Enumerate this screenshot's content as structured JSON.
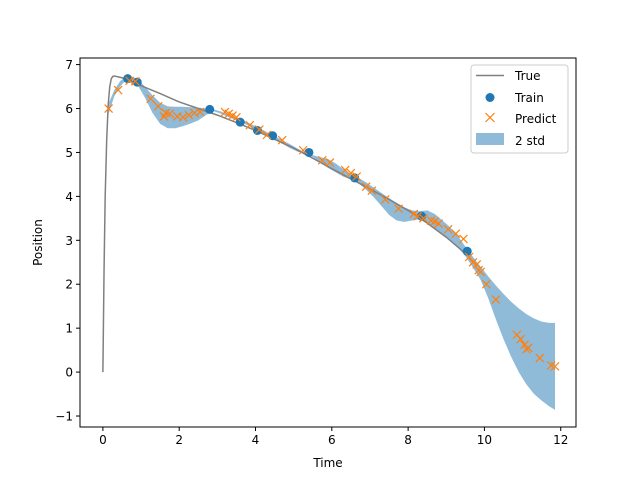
{
  "chart_data": {
    "type": "line",
    "xlabel": "Time",
    "ylabel": "Position",
    "xlim": [
      -0.6,
      12.4
    ],
    "ylim": [
      -1.25,
      7.15
    ],
    "xticks": [
      0,
      2,
      4,
      6,
      8,
      10,
      12
    ],
    "yticks": [
      -1,
      0,
      1,
      2,
      3,
      4,
      5,
      6,
      7
    ],
    "grid": false,
    "legend_position": "top-right",
    "colors": {
      "true": "#808080",
      "train": "#1f77b4",
      "predict": "#ff7f0e",
      "band": "#1f77b4"
    },
    "series": [
      {
        "name": "True",
        "kind": "line",
        "x": [
          0.0,
          0.03,
          0.06,
          0.1,
          0.14,
          0.18,
          0.22,
          0.26,
          0.3,
          0.35,
          0.4,
          0.5,
          0.6,
          0.8,
          1.0,
          1.5,
          2.0,
          2.5,
          3.0,
          3.5,
          4.0,
          4.5,
          5.0,
          5.5,
          6.0,
          6.5,
          7.0,
          7.5,
          8.0,
          8.5,
          9.0,
          9.5
        ],
        "y": [
          0.0,
          2.3,
          4.0,
          5.3,
          6.1,
          6.5,
          6.68,
          6.73,
          6.74,
          6.73,
          6.72,
          6.7,
          6.67,
          6.6,
          6.52,
          6.34,
          6.15,
          6.0,
          5.85,
          5.68,
          5.5,
          5.3,
          5.1,
          4.87,
          4.63,
          4.4,
          4.17,
          3.93,
          3.68,
          3.39,
          3.07,
          2.7
        ]
      },
      {
        "name": "Train",
        "kind": "scatter",
        "x": [
          0.65,
          0.9,
          2.8,
          3.6,
          4.05,
          4.45,
          5.4,
          6.6,
          8.35,
          9.55
        ],
        "y": [
          6.68,
          6.6,
          5.98,
          5.69,
          5.5,
          5.38,
          5.0,
          4.42,
          3.55,
          2.75
        ]
      },
      {
        "name": "Predict",
        "kind": "scatter",
        "x": [
          0.15,
          0.4,
          0.7,
          0.85,
          1.25,
          1.45,
          1.6,
          1.65,
          1.75,
          1.95,
          2.1,
          2.25,
          2.4,
          2.55,
          3.2,
          3.3,
          3.4,
          3.5,
          3.85,
          4.1,
          4.3,
          4.7,
          5.25,
          5.75,
          5.95,
          6.35,
          6.5,
          6.65,
          6.9,
          7.05,
          7.4,
          7.75,
          8.15,
          8.25,
          8.4,
          8.6,
          8.7,
          8.8,
          9.05,
          9.25,
          9.45,
          9.6,
          9.7,
          9.8,
          9.85,
          9.9,
          10.05,
          10.3,
          10.85,
          10.95,
          11.05,
          11.1,
          11.15,
          11.45,
          11.75,
          11.85
        ],
        "y": [
          6.0,
          6.42,
          6.63,
          6.62,
          6.22,
          6.05,
          5.82,
          5.9,
          5.88,
          5.82,
          5.8,
          5.85,
          5.9,
          5.92,
          5.92,
          5.88,
          5.84,
          5.8,
          5.62,
          5.52,
          5.4,
          5.28,
          5.05,
          4.82,
          4.77,
          4.6,
          4.53,
          4.45,
          4.22,
          4.13,
          3.93,
          3.72,
          3.6,
          3.55,
          3.5,
          3.45,
          3.43,
          3.38,
          3.25,
          3.15,
          3.03,
          2.62,
          2.5,
          2.45,
          2.32,
          2.28,
          2.0,
          1.65,
          0.85,
          0.75,
          0.62,
          0.52,
          0.55,
          0.32,
          0.15,
          0.13
        ]
      }
    ],
    "band": {
      "name": "2 std",
      "x": [
        0.15,
        0.3,
        0.45,
        0.6,
        0.75,
        0.9,
        1.1,
        1.3,
        1.5,
        1.7,
        1.9,
        2.1,
        2.3,
        2.5,
        2.7,
        2.9,
        3.1,
        3.3,
        3.5,
        3.7,
        3.9,
        4.1,
        4.3,
        4.5,
        4.7,
        4.9,
        5.1,
        5.3,
        5.5,
        5.7,
        5.9,
        6.1,
        6.3,
        6.5,
        6.7,
        6.9,
        7.1,
        7.3,
        7.5,
        7.7,
        7.9,
        8.1,
        8.3,
        8.5,
        8.7,
        8.9,
        9.1,
        9.3,
        9.5,
        9.7,
        9.9,
        10.1,
        10.3,
        10.5,
        10.7,
        10.9,
        11.1,
        11.3,
        11.5,
        11.7,
        11.85
      ],
      "upper": [
        6.12,
        6.42,
        6.62,
        6.73,
        6.72,
        6.68,
        6.5,
        6.3,
        6.13,
        6.05,
        6.04,
        6.04,
        6.03,
        6.02,
        6.0,
        5.98,
        5.93,
        5.86,
        5.79,
        5.72,
        5.64,
        5.56,
        5.46,
        5.37,
        5.28,
        5.19,
        5.09,
        5.0,
        4.94,
        4.89,
        4.85,
        4.75,
        4.62,
        4.5,
        4.42,
        4.32,
        4.2,
        4.08,
        3.96,
        3.85,
        3.75,
        3.68,
        3.66,
        3.68,
        3.6,
        3.45,
        3.3,
        3.1,
        2.86,
        2.62,
        2.4,
        2.18,
        1.97,
        1.78,
        1.6,
        1.45,
        1.32,
        1.22,
        1.15,
        1.12,
        1.12
      ],
      "lower": [
        5.88,
        6.28,
        6.5,
        6.64,
        6.6,
        6.55,
        6.25,
        5.9,
        5.65,
        5.55,
        5.55,
        5.6,
        5.66,
        5.73,
        5.85,
        5.94,
        5.88,
        5.8,
        5.73,
        5.66,
        5.57,
        5.48,
        5.38,
        5.3,
        5.2,
        5.1,
        5.02,
        4.98,
        4.9,
        4.78,
        4.65,
        4.55,
        4.45,
        4.38,
        4.3,
        4.15,
        3.98,
        3.78,
        3.58,
        3.45,
        3.42,
        3.45,
        3.48,
        3.4,
        3.25,
        3.12,
        2.98,
        2.84,
        2.64,
        2.38,
        2.1,
        1.68,
        1.2,
        0.75,
        0.35,
        0.0,
        -0.28,
        -0.5,
        -0.65,
        -0.78,
        -0.86
      ]
    }
  }
}
